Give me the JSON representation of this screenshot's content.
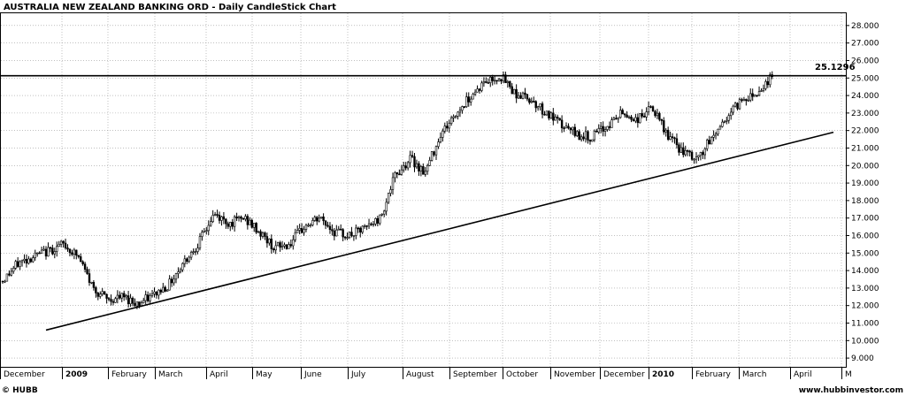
{
  "chart_data": {
    "type": "candlestick",
    "title": "AUSTRALIA NEW ZEALAND BANKING ORD - Daily CandleStick Chart",
    "ylim": [
      8.5,
      28.7
    ],
    "y_ticks": [
      "9.000",
      "10.000",
      "11.000",
      "12.000",
      "13.000",
      "14.000",
      "15.000",
      "16.000",
      "17.000",
      "18.000",
      "19.000",
      "20.000",
      "21.000",
      "22.000",
      "23.000",
      "24.000",
      "25.000",
      "26.000",
      "27.000",
      "28.000"
    ],
    "x_labels": [
      {
        "label": "December",
        "bold": false
      },
      {
        "label": "2009",
        "bold": true
      },
      {
        "label": "February",
        "bold": false
      },
      {
        "label": "March",
        "bold": false
      },
      {
        "label": "April",
        "bold": false
      },
      {
        "label": "May",
        "bold": false
      },
      {
        "label": "June",
        "bold": false
      },
      {
        "label": "July",
        "bold": false
      },
      {
        "label": "August",
        "bold": false
      },
      {
        "label": "September",
        "bold": false
      },
      {
        "label": "October",
        "bold": false
      },
      {
        "label": "November",
        "bold": false
      },
      {
        "label": "December",
        "bold": false
      },
      {
        "label": "2010",
        "bold": true
      },
      {
        "label": "February",
        "bold": false
      },
      {
        "label": "March",
        "bold": false
      },
      {
        "label": "April",
        "bold": false
      },
      {
        "label": "M",
        "bold": false
      }
    ],
    "resistance_level": 25.1296,
    "resistance_label": "25.1296",
    "trendline": {
      "start": {
        "date": "late December 2008",
        "price": 10.6
      },
      "end": {
        "date": "mid April 2010",
        "price": 21.9
      }
    },
    "price_path": [
      {
        "date": "December 2008",
        "price": 13.4
      },
      {
        "date": "December 2008",
        "price": 14.4
      },
      {
        "date": "December 2008",
        "price": 14.8
      },
      {
        "date": "2009 (January)",
        "price": 15.1
      },
      {
        "date": "2009 (January)",
        "price": 15.5
      },
      {
        "date": "2009 (January)",
        "price": 14.8
      },
      {
        "date": "2009 (January)",
        "price": 13.0
      },
      {
        "date": "February 2009",
        "price": 12.3
      },
      {
        "date": "February 2009",
        "price": 12.5
      },
      {
        "date": "February 2009",
        "price": 12.1
      },
      {
        "date": "March 2009",
        "price": 12.6
      },
      {
        "date": "March 2009",
        "price": 13.2
      },
      {
        "date": "March 2009",
        "price": 14.5
      },
      {
        "date": "March 2009",
        "price": 15.6
      },
      {
        "date": "April 2009",
        "price": 17.2
      },
      {
        "date": "April 2009",
        "price": 16.7
      },
      {
        "date": "April 2009",
        "price": 17.0
      },
      {
        "date": "May 2009",
        "price": 16.2
      },
      {
        "date": "May 2009",
        "price": 15.3
      },
      {
        "date": "May 2009",
        "price": 15.5
      },
      {
        "date": "June 2009",
        "price": 16.5
      },
      {
        "date": "June 2009",
        "price": 17.0
      },
      {
        "date": "June 2009",
        "price": 16.2
      },
      {
        "date": "July 2009",
        "price": 16.0
      },
      {
        "date": "July 2009",
        "price": 16.4
      },
      {
        "date": "July 2009",
        "price": 17.0
      },
      {
        "date": "August 2009",
        "price": 19.4
      },
      {
        "date": "August 2009",
        "price": 20.4
      },
      {
        "date": "August 2009",
        "price": 19.6
      },
      {
        "date": "August 2009",
        "price": 21.8
      },
      {
        "date": "September 2009",
        "price": 22.9
      },
      {
        "date": "September 2009",
        "price": 24.0
      },
      {
        "date": "September 2009",
        "price": 24.8
      },
      {
        "date": "October 2009",
        "price": 25.1
      },
      {
        "date": "October 2009",
        "price": 24.1
      },
      {
        "date": "October 2009",
        "price": 23.8
      },
      {
        "date": "November 2009",
        "price": 23.0
      },
      {
        "date": "November 2009",
        "price": 22.3
      },
      {
        "date": "November 2009",
        "price": 21.8
      },
      {
        "date": "December 2009",
        "price": 21.6
      },
      {
        "date": "December 2009",
        "price": 22.2
      },
      {
        "date": "December 2009",
        "price": 23.0
      },
      {
        "date": "2010 (January)",
        "price": 22.6
      },
      {
        "date": "2010 (January)",
        "price": 23.3
      },
      {
        "date": "2010 (January)",
        "price": 21.8
      },
      {
        "date": "February 2010",
        "price": 20.8
      },
      {
        "date": "February 2010",
        "price": 20.3
      },
      {
        "date": "February 2010",
        "price": 21.6
      },
      {
        "date": "February 2010",
        "price": 22.8
      },
      {
        "date": "March 2010",
        "price": 23.8
      },
      {
        "date": "March 2010",
        "price": 24.2
      },
      {
        "date": "March 2010",
        "price": 25.1
      }
    ]
  },
  "footer": {
    "left": "© HUBB",
    "right": "www.hubbinvestor.com"
  }
}
